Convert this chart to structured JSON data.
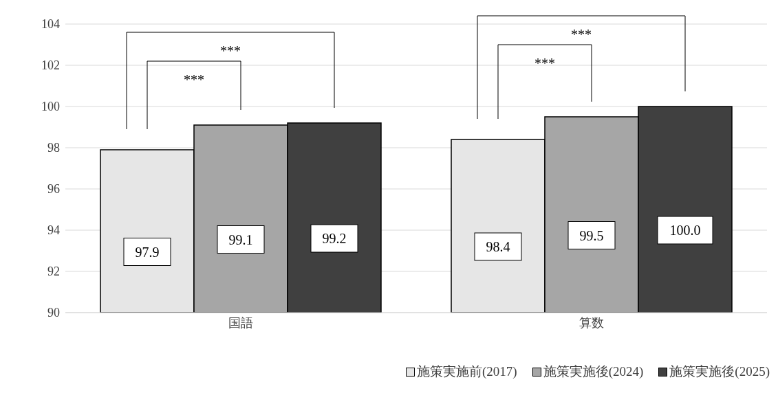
{
  "chart_data": {
    "type": "bar",
    "categories": [
      "国語",
      "算数"
    ],
    "series": [
      {
        "name": "施策実施前(2017)",
        "color": "#e6e6e6",
        "values": [
          97.9,
          98.4
        ],
        "value_labels": [
          "97.9",
          "98.4"
        ]
      },
      {
        "name": "施策実施後(2024)",
        "color": "#a6a6a6",
        "values": [
          99.1,
          99.5
        ],
        "value_labels": [
          "99.1",
          "99.5"
        ]
      },
      {
        "name": "施策実施後(2025)",
        "color": "#404040",
        "values": [
          99.2,
          100.0
        ],
        "value_labels": [
          "99.2",
          "100.0"
        ]
      }
    ],
    "ylim": [
      90,
      104
    ],
    "yticks": [
      90,
      92,
      94,
      96,
      98,
      100,
      102,
      104
    ],
    "grid": "y",
    "legend": "bottom right",
    "annotations": [
      "***",
      "***",
      "***",
      "***"
    ]
  }
}
